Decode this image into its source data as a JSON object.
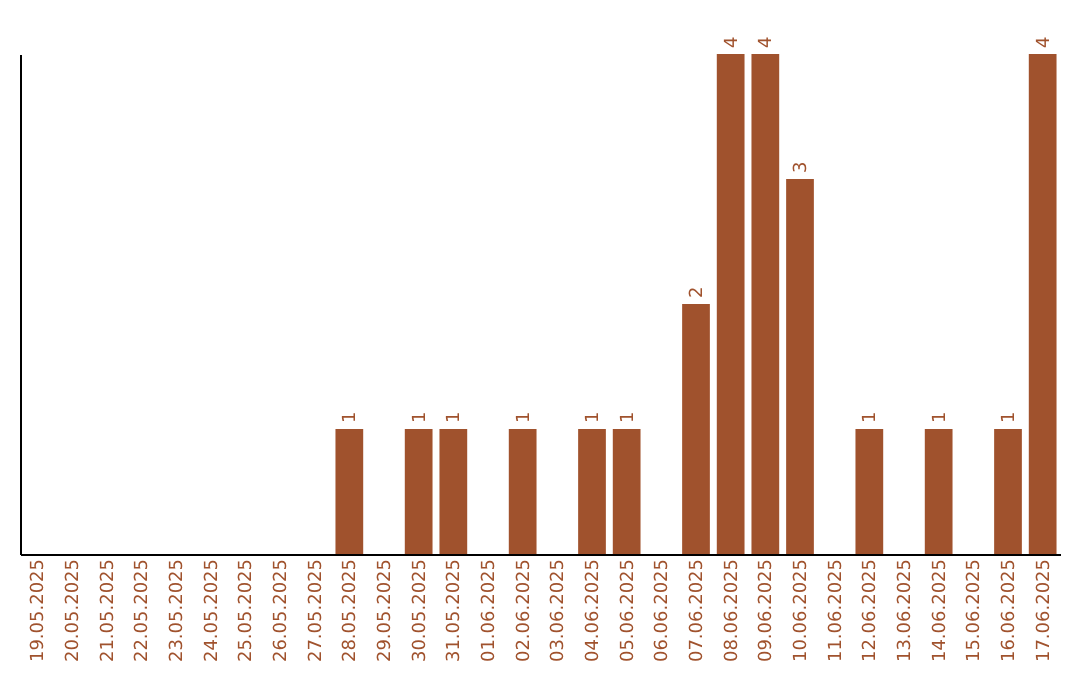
{
  "chart_data": {
    "type": "bar",
    "categories": [
      "19.05.2025",
      "20.05.2025",
      "21.05.2025",
      "22.05.2025",
      "23.05.2025",
      "24.05.2025",
      "25.05.2025",
      "26.05.2025",
      "27.05.2025",
      "28.05.2025",
      "29.05.2025",
      "30.05.2025",
      "31.05.2025",
      "01.06.2025",
      "02.06.2025",
      "03.06.2025",
      "04.06.2025",
      "05.06.2025",
      "06.06.2025",
      "07.06.2025",
      "08.06.2025",
      "09.06.2025",
      "10.06.2025",
      "11.06.2025",
      "12.06.2025",
      "13.06.2025",
      "14.06.2025",
      "15.06.2025",
      "16.06.2025",
      "17.06.2025"
    ],
    "values": [
      0,
      0,
      0,
      0,
      0,
      0,
      0,
      0,
      0,
      1,
      0,
      1,
      1,
      0,
      1,
      0,
      1,
      1,
      0,
      2,
      4,
      4,
      3,
      0,
      1,
      0,
      1,
      0,
      1,
      4
    ],
    "value_labels": [
      null,
      null,
      null,
      null,
      null,
      null,
      null,
      null,
      null,
      "1",
      null,
      "1",
      "1",
      null,
      "1",
      null,
      "1",
      "1",
      null,
      "2",
      "4",
      "4",
      "3",
      null,
      "1",
      null,
      "1",
      null,
      "1",
      "4"
    ],
    "color": "#a0522d",
    "tick_labels": "x",
    "grid": false
  }
}
